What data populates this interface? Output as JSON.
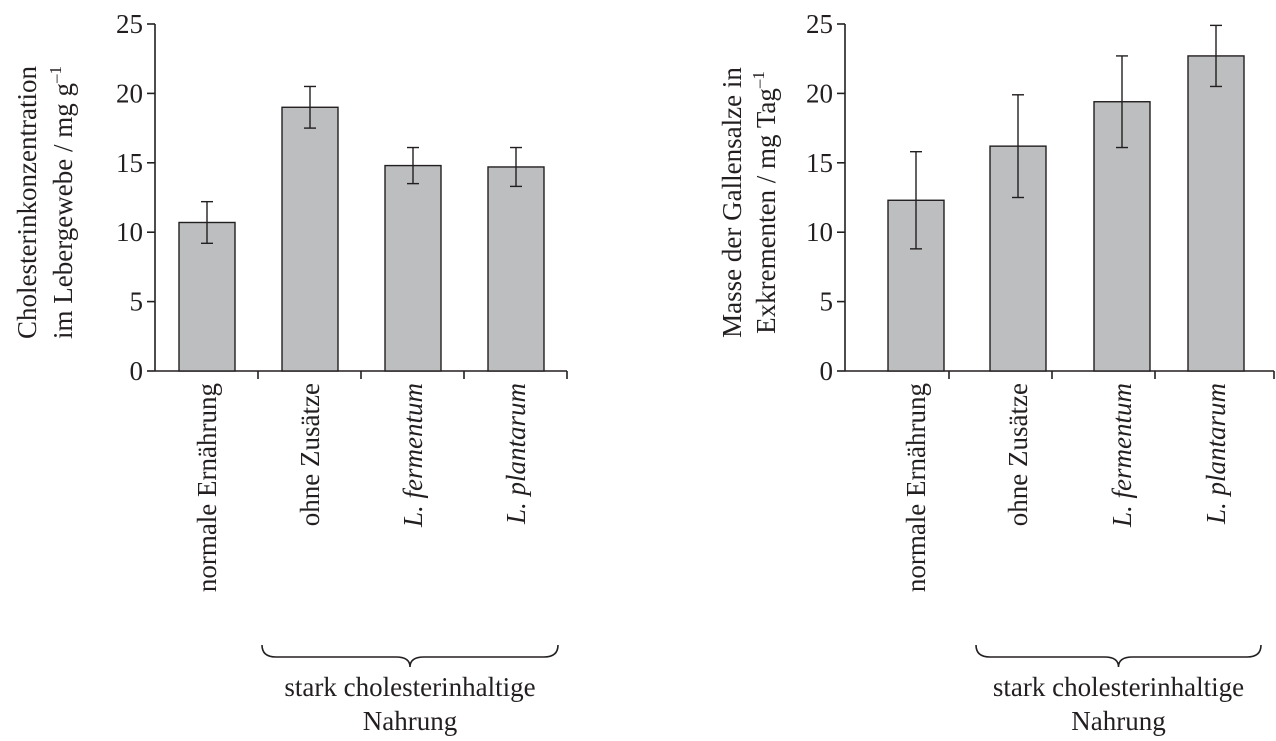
{
  "chart_data": [
    {
      "type": "bar",
      "ylabel_line1": "Cholesterinkonzentration",
      "ylabel_line2": "im Lebergewebe / mg g",
      "ylabel_sup": "–1",
      "ylim": [
        0,
        25
      ],
      "yticks": [
        0,
        5,
        10,
        15,
        20,
        25
      ],
      "categories": [
        {
          "label": "normale Ernährung",
          "italic": false
        },
        {
          "label": "ohne Zusätze",
          "italic": false
        },
        {
          "label": "L. fermentum",
          "italic": true
        },
        {
          "label": "L. plantarum",
          "italic": true
        }
      ],
      "values": [
        10.7,
        19.0,
        14.8,
        14.7
      ],
      "errors": [
        1.5,
        1.5,
        1.3,
        1.4
      ],
      "brace_label_line1": "stark cholesterinhaltige",
      "brace_label_line2": "Nahrung",
      "grid": false
    },
    {
      "type": "bar",
      "ylabel_line1": "Masse der Gallensalze in",
      "ylabel_line2": "Exkrementen / mg Tag",
      "ylabel_sup": "–1",
      "ylim": [
        0,
        25
      ],
      "yticks": [
        0,
        5,
        10,
        15,
        20,
        25
      ],
      "categories": [
        {
          "label": "normale Ernährung",
          "italic": false
        },
        {
          "label": "ohne Zusätze",
          "italic": false
        },
        {
          "label": "L. fermentum",
          "italic": true
        },
        {
          "label": "L. plantarum",
          "italic": true
        }
      ],
      "values": [
        12.3,
        16.2,
        19.4,
        22.7
      ],
      "errors": [
        3.5,
        3.7,
        3.3,
        2.2
      ],
      "brace_label_line1": "stark cholesterinhaltige",
      "brace_label_line2": "Nahrung",
      "grid": false
    }
  ]
}
